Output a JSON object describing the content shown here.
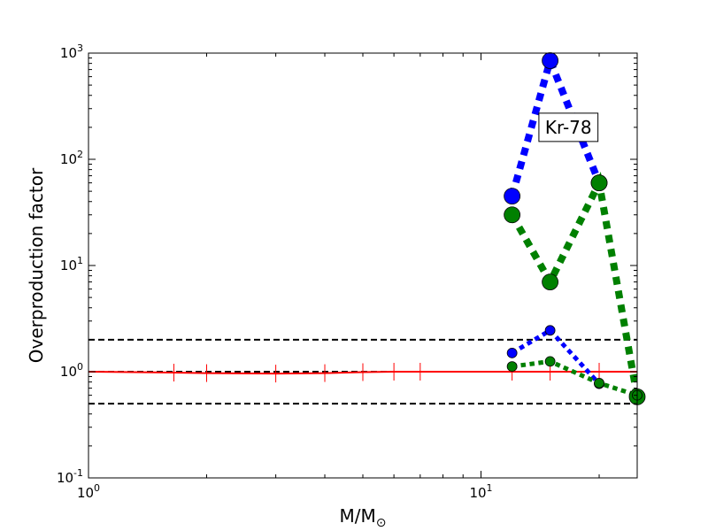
{
  "chart_data": {
    "type": "line",
    "title": "",
    "xlabel": "M/M",
    "xlabel_subscript": "⊙",
    "ylabel": "Overproduction factor",
    "xscale": "log",
    "yscale": "log",
    "xlim": [
      1,
      25
    ],
    "ylim": [
      0.1,
      1000
    ],
    "x_ticks": [
      {
        "value": 1,
        "base": "10",
        "exp": "0"
      },
      {
        "value": 10,
        "base": "10",
        "exp": "1"
      }
    ],
    "y_ticks": [
      {
        "value": 0.1,
        "base": "10",
        "exp": "-1"
      },
      {
        "value": 1,
        "base": "10",
        "exp": "0"
      },
      {
        "value": 10,
        "base": "10",
        "exp": "1"
      },
      {
        "value": 100,
        "base": "10",
        "exp": "2"
      },
      {
        "value": 1000,
        "base": "10",
        "exp": "3"
      }
    ],
    "grid": false,
    "reference_lines": [
      {
        "y": 2,
        "style": "dashed",
        "color": "#000000"
      },
      {
        "y": 1,
        "style": "dashed",
        "color": "#000000"
      },
      {
        "y": 0.5,
        "style": "dashed",
        "color": "#000000"
      }
    ],
    "series": [
      {
        "color": "#ff0000",
        "line_style": "solid",
        "width": "thin",
        "marker": "vline",
        "x": [
          1.0,
          1.65,
          2.0,
          3.0,
          4.0,
          5.0,
          6.0,
          7.0,
          12.0,
          15.0,
          20.0,
          25.0
        ],
        "y": [
          1.0,
          0.98,
          0.97,
          0.96,
          0.97,
          0.99,
          1.0,
          1.0,
          1.0,
          1.0,
          1.0,
          1.0
        ]
      },
      {
        "color": "#0000ff",
        "line_style": "dotted",
        "width": "thick",
        "marker": "circle-large",
        "x": [
          12,
          15,
          20
        ],
        "y": [
          45,
          850,
          60
        ]
      },
      {
        "color": "#008000",
        "line_style": "dotted",
        "width": "thick",
        "marker": "circle-large",
        "x": [
          12,
          15,
          20,
          25
        ],
        "y": [
          30,
          7,
          60,
          0.58
        ]
      },
      {
        "color": "#0000ff",
        "line_style": "dotted",
        "width": "medium",
        "marker": "circle-small",
        "x": [
          12,
          15,
          20
        ],
        "y": [
          1.5,
          2.45,
          0.77
        ]
      },
      {
        "color": "#008000",
        "line_style": "dotted",
        "width": "medium",
        "marker": "circle-small",
        "x": [
          12,
          15,
          20,
          25
        ],
        "y": [
          1.12,
          1.25,
          0.78,
          0.6
        ]
      }
    ],
    "annotations": [
      {
        "text": "Kr-78",
        "x": 16.7,
        "y": 200,
        "boxed": true
      }
    ]
  }
}
